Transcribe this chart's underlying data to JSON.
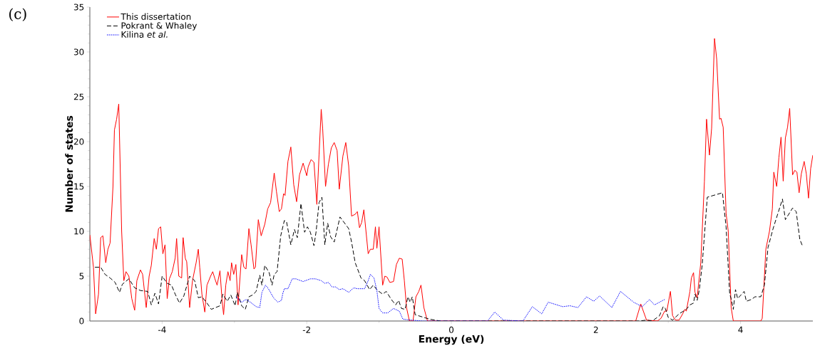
{
  "chart_data": {
    "type": "line",
    "xlabel": "Energy (eV)",
    "ylabel": "Number of states",
    "annotations": [
      "(c)"
    ],
    "xlim": [
      -5,
      5
    ],
    "xticks": [
      -4,
      -2,
      0,
      2,
      4
    ],
    "ylim": [
      0,
      35
    ],
    "yticks": [
      0,
      5,
      10,
      15,
      20,
      25,
      30,
      35
    ],
    "legend": "top left",
    "grid": false,
    "marker": "none",
    "series": [
      {
        "name": "This dissertation",
        "color": "#ff0000",
        "line_style": "solid",
        "x": [
          -5,
          -4.95,
          -4.92,
          -4.88,
          -4.85,
          -4.82,
          -4.78,
          -4.75,
          -4.72,
          -4.68,
          -4.66,
          -4.63,
          -4.6,
          -4.56,
          -4.53,
          -4.5,
          -4.46,
          -4.42,
          -4.38,
          -4.35,
          -4.3,
          -4.27,
          -4.22,
          -4.18,
          -4.15,
          -4.11,
          -4.08,
          -4.05,
          -4.02,
          -3.99,
          -3.96,
          -3.93,
          -3.9,
          -3.86,
          -3.82,
          -3.8,
          -3.77,
          -3.73,
          -3.71,
          -3.68,
          -3.66,
          -3.62,
          -3.58,
          -3.53,
          -3.5,
          -3.48,
          -3.45,
          -3.41,
          -3.38,
          -3.33,
          -3.3,
          -3.27,
          -3.24,
          -3.2,
          -3.17,
          -3.15,
          -3.12,
          -3.09,
          -3.06,
          -3.04,
          -3.01,
          -2.98,
          -2.95,
          -2.9,
          -2.87,
          -2.84,
          -2.8,
          -2.77,
          -2.73,
          -2.71,
          -2.67,
          -2.63,
          -2.58,
          -2.54,
          -2.5,
          -2.45,
          -2.42,
          -2.38,
          -2.35,
          -2.32,
          -2.3,
          -2.26,
          -2.22,
          -2.18,
          -2.14,
          -2.1,
          -2.05,
          -2.0,
          -1.98,
          -1.94,
          -1.9,
          -1.86,
          -1.83,
          -1.8,
          -1.78,
          -1.74,
          -1.7,
          -1.66,
          -1.62,
          -1.58,
          -1.55,
          -1.5,
          -1.46,
          -1.42,
          -1.38,
          -1.33,
          -1.3,
          -1.27,
          -1.24,
          -1.21,
          -1.15,
          -1.12,
          -1.08,
          -1.05,
          -1.03,
          -1.0,
          -0.95,
          -0.92,
          -0.89,
          -0.85,
          -0.8,
          -0.76,
          -0.72,
          -0.68,
          -0.65,
          -0.62,
          -0.58,
          -0.53,
          -0.49,
          -0.45,
          -0.42,
          -0.38,
          -0.33,
          2.55,
          2.62,
          2.7,
          2.85,
          2.9,
          2.95,
          2.98,
          3.03,
          3.06,
          3.1,
          3.15,
          3.2,
          3.23,
          3.25,
          3.3,
          3.32,
          3.35,
          3.37,
          3.4,
          3.45,
          3.5,
          3.53,
          3.57,
          3.6,
          3.64,
          3.67,
          3.71,
          3.73,
          3.76,
          3.8,
          3.83,
          3.87,
          3.9,
          4.28,
          4.3,
          4.35,
          4.4,
          4.44,
          4.46,
          4.5,
          4.53,
          4.56,
          4.59,
          4.62,
          4.65,
          4.68,
          4.72,
          4.75,
          4.78,
          4.81,
          4.84,
          4.88,
          4.91,
          4.94,
          4.97,
          5.0
        ],
        "values": [
          9.6,
          6,
          0.8,
          3,
          9.3,
          9.5,
          6.5,
          8,
          8.7,
          15,
          21.3,
          22.5,
          24.2,
          10,
          4.5,
          5.5,
          5,
          2.5,
          1.2,
          4.5,
          5.7,
          5.2,
          1.5,
          5,
          6.2,
          9.2,
          8,
          10.3,
          10.5,
          7.5,
          8.5,
          2.5,
          4.7,
          5.5,
          7,
          9.2,
          5,
          4.8,
          9.3,
          7,
          6.6,
          1.5,
          4.5,
          6.5,
          8,
          6,
          3,
          1,
          4,
          5,
          5.5,
          4.7,
          4,
          5.6,
          2.2,
          0.7,
          4,
          5.5,
          4.5,
          6.5,
          5.2,
          6.3,
          1.8,
          7.4,
          6,
          5.8,
          10.3,
          8.5,
          5.8,
          6,
          11.3,
          9.5,
          10.8,
          12.5,
          13.2,
          16.5,
          14.5,
          12.2,
          12.5,
          14.2,
          14,
          17.8,
          19.4,
          15.2,
          13.3,
          16.3,
          17.6,
          16.2,
          17.2,
          18,
          17.7,
          13,
          18.5,
          23.6,
          21.5,
          15,
          17.5,
          19.3,
          19.9,
          19,
          14.7,
          18.4,
          19.9,
          17.3,
          11.7,
          11.9,
          12.2,
          10.4,
          11,
          12.4,
          7.5,
          8,
          8,
          10.5,
          8.1,
          10.5,
          4,
          5,
          4.9,
          4.3,
          4.4,
          6.3,
          7,
          6.9,
          4.5,
          1.5,
          0,
          0,
          2.7,
          3.3,
          4.0,
          1.5,
          0,
          0,
          1.9,
          0.1,
          0,
          0.3,
          1.1,
          1.1,
          3.3,
          0.6,
          0.1,
          0.1,
          0.8,
          1.3,
          1.1,
          3.3,
          4.8,
          5.4,
          3.2,
          2.6,
          6.5,
          15.5,
          22.5,
          18.5,
          21.5,
          31.5,
          29.2,
          22.5,
          22.6,
          21.6,
          12,
          10,
          1.5,
          0,
          0,
          0.3,
          8,
          10,
          12.5,
          16.6,
          15,
          18.2,
          20.5,
          15.6,
          20.4,
          21.6,
          23.7,
          16.3,
          16.8,
          16.6,
          14.3,
          16.4,
          17.8,
          16.4,
          13.7,
          17,
          18.5
        ]
      },
      {
        "name": "Pokrant & Whaley",
        "color": "#000000",
        "line_style": "dashed",
        "x": [
          -4.93,
          -4.85,
          -4.79,
          -4.72,
          -4.65,
          -4.59,
          -4.55,
          -4.46,
          -4.38,
          -4.3,
          -4.2,
          -4.15,
          -4.1,
          -4.05,
          -4.0,
          -3.93,
          -3.87,
          -3.82,
          -3.76,
          -3.7,
          -3.62,
          -3.55,
          -3.5,
          -3.45,
          -3.38,
          -3.32,
          -3.2,
          -3.16,
          -3.1,
          -3.05,
          -2.99,
          -2.96,
          -2.9,
          -2.85,
          -2.8,
          -2.75,
          -2.7,
          -2.65,
          -2.62,
          -2.58,
          -2.52,
          -2.48,
          -2.45,
          -2.41,
          -2.36,
          -2.31,
          -2.28,
          -2.22,
          -2.17,
          -2.13,
          -2.08,
          -2.03,
          -1.99,
          -1.95,
          -1.9,
          -1.87,
          -1.83,
          -1.79,
          -1.75,
          -1.71,
          -1.67,
          -1.62,
          -1.54,
          -1.42,
          -1.38,
          -1.33,
          -1.25,
          -1.2,
          -1.13,
          -1.08,
          -1.02,
          -0.95,
          -0.9,
          -0.83,
          -0.77,
          -0.73,
          -0.69,
          -0.64,
          -0.6,
          -0.57,
          -0.54,
          -0.5,
          -0.3,
          -0.15,
          2.6,
          2.7,
          2.78,
          2.88,
          2.93,
          2.96,
          3.0,
          3.06,
          3.15,
          3.25,
          3.3,
          3.35,
          3.37,
          3.4,
          3.43,
          3.47,
          3.54,
          3.75,
          3.8,
          3.85,
          3.87,
          3.9,
          3.93,
          3.96,
          4.05,
          4.08,
          4.15,
          4.2,
          4.28,
          4.33,
          4.38,
          4.45,
          4.58,
          4.62,
          4.72,
          4.77,
          4.82,
          4.86
        ],
        "values": [
          6,
          6,
          5.2,
          4.8,
          4.3,
          3.2,
          4.1,
          4.7,
          3.7,
          3.4,
          3.3,
          1.8,
          3.1,
          1.9,
          5.0,
          4.2,
          4.0,
          3.0,
          2.0,
          2.8,
          5.0,
          4.5,
          2.6,
          2.7,
          2.0,
          1.3,
          1.7,
          3.0,
          2.2,
          2.9,
          1.7,
          3.2,
          1.7,
          1.3,
          2.7,
          2.9,
          3.3,
          5.1,
          4.0,
          6.2,
          5.4,
          4.0,
          5.2,
          5.5,
          9.5,
          11.2,
          11.1,
          8.5,
          10.2,
          9.3,
          13.1,
          9.9,
          10.5,
          9.9,
          8.4,
          10,
          13.2,
          13.8,
          8.5,
          10.9,
          9.4,
          8.8,
          11.6,
          10.3,
          8.8,
          6.5,
          4.8,
          4.5,
          3.5,
          4.0,
          3.4,
          3.0,
          3.3,
          2.4,
          1.8,
          2.3,
          1.4,
          1.3,
          2.7,
          2.1,
          2.7,
          0.7,
          0.2,
          0,
          0,
          0.1,
          0,
          0.6,
          1.6,
          1.4,
          0.4,
          0.1,
          0.8,
          1.3,
          1.8,
          2,
          3,
          2.3,
          3.5,
          6.3,
          13.8,
          14.3,
          10.5,
          3,
          2.5,
          1.3,
          3.5,
          2.5,
          3.3,
          2.2,
          2.4,
          2.7,
          2.7,
          4,
          8.2,
          10.3,
          13.6,
          11.3,
          12.6,
          12.2,
          9.1,
          8.3
        ]
      },
      {
        "name": "Kilina *et al.*",
        "color": "#0000ff",
        "line_style": "dotted",
        "x": [
          -2.98,
          -2.9,
          -2.84,
          -2.78,
          -2.7,
          -2.65,
          -2.62,
          -2.57,
          -2.53,
          -2.46,
          -2.4,
          -2.35,
          -2.33,
          -2.31,
          -2.26,
          -2.2,
          -2.15,
          -2.05,
          -1.95,
          -1.88,
          -1.8,
          -1.75,
          -1.7,
          -1.65,
          -1.6,
          -1.55,
          -1.5,
          -1.42,
          -1.35,
          -1.3,
          -1.2,
          -1.15,
          -1.12,
          -1.07,
          -1.03,
          -1.0,
          -0.95,
          -0.88,
          -0.8,
          -0.72,
          -0.67,
          -0.55,
          -0.4,
          0.5,
          0.6,
          0.72,
          0.99,
          1.12,
          1.25,
          1.34,
          1.54,
          1.64,
          1.75,
          1.87,
          1.97,
          2.05,
          2.22,
          2.28,
          2.34,
          2.52,
          2.64,
          2.74,
          2.81,
          2.95
        ],
        "values": [
          2.7,
          2.1,
          2.4,
          2.1,
          1.6,
          1.5,
          3.2,
          4.0,
          3.6,
          2.6,
          2.1,
          2.3,
          3.1,
          3.6,
          3.6,
          4.7,
          4.7,
          4.4,
          4.7,
          4.7,
          4.5,
          4.2,
          4.3,
          3.8,
          3.8,
          3.5,
          3.6,
          3.2,
          3.7,
          3.6,
          3.6,
          4.5,
          5.2,
          4.8,
          3.4,
          1.4,
          0.9,
          0.9,
          1.4,
          1.1,
          0.2,
          0.1,
          0,
          0,
          1.0,
          0.1,
          0,
          1.6,
          0.8,
          2.1,
          1.6,
          1.7,
          1.5,
          2.7,
          2.2,
          2.8,
          1.5,
          2.4,
          3.3,
          2.1,
          1.6,
          2.4,
          1.8,
          2.4
        ]
      }
    ]
  }
}
